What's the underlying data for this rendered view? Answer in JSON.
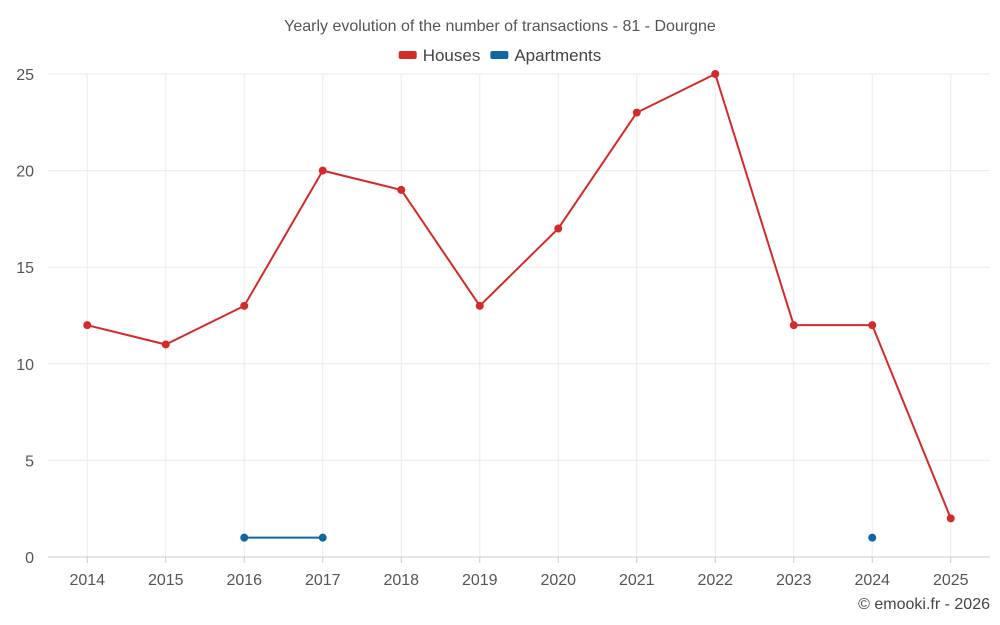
{
  "chart_data": {
    "type": "line",
    "title": "Yearly evolution of the number of transactions - 81 - Dourgne",
    "x": [
      2014,
      2015,
      2016,
      2017,
      2018,
      2019,
      2020,
      2021,
      2022,
      2023,
      2024,
      2025
    ],
    "x_tick_labels": [
      "2014",
      "2015",
      "2016",
      "2017",
      "2018",
      "2019",
      "2020",
      "2021",
      "2022",
      "2023",
      "2024",
      "2025"
    ],
    "ylim": [
      0,
      25
    ],
    "y_ticks": [
      0,
      5,
      10,
      15,
      20,
      25
    ],
    "y_tick_labels": [
      "0",
      "5",
      "10",
      "15",
      "20",
      "25"
    ],
    "xlabel": "",
    "ylabel": "",
    "grid": true,
    "legend_position": "top-center",
    "series": [
      {
        "name": "Houses",
        "color": "#d32a2a",
        "values": [
          12,
          11,
          13,
          20,
          19,
          13,
          17,
          23,
          25,
          12,
          12,
          2
        ]
      },
      {
        "name": "Apartments",
        "color": "#0f66a0",
        "values": [
          null,
          null,
          1,
          1,
          null,
          null,
          null,
          null,
          null,
          null,
          1,
          null
        ]
      }
    ],
    "credit": "© emooki.fr - 2026"
  }
}
